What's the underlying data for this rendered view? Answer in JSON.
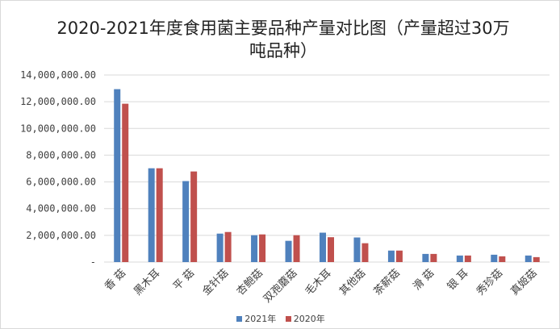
{
  "chart_data": {
    "type": "bar",
    "title": "2020-2021年度食用菌主要品种产量对比图（产量超过30万吨品种）",
    "categories": [
      "香 菇",
      "黑木耳",
      "平 菇",
      "金针菇",
      "杏鲍菇",
      "双孢蘑菇",
      "毛木耳",
      "其他菇",
      "茶薪菇",
      "滑 菇",
      "银 耳",
      "秀珍菇",
      "真姬菇"
    ],
    "series": [
      {
        "name": "2021年",
        "color": "#4f81bd",
        "values": [
          12940000,
          7020000,
          6060000,
          2130000,
          2010000,
          1590000,
          2200000,
          1840000,
          860000,
          610000,
          490000,
          550000,
          490000
        ]
      },
      {
        "name": "2020年",
        "color": "#c0504d",
        "values": [
          11850000,
          7020000,
          6780000,
          2250000,
          2070000,
          2010000,
          1860000,
          1410000,
          860000,
          610000,
          490000,
          430000,
          370000
        ]
      }
    ],
    "y_ticks": [
      "-",
      "2,000,000.00",
      "4,000,000.00",
      "6,000,000.00",
      "8,000,000.00",
      "10,000,000.00",
      "12,000,000.00",
      "14,000,000.00"
    ],
    "ylim": [
      0,
      14000000
    ],
    "grid": true,
    "legend": "bottom",
    "xlabel": "",
    "ylabel": ""
  }
}
